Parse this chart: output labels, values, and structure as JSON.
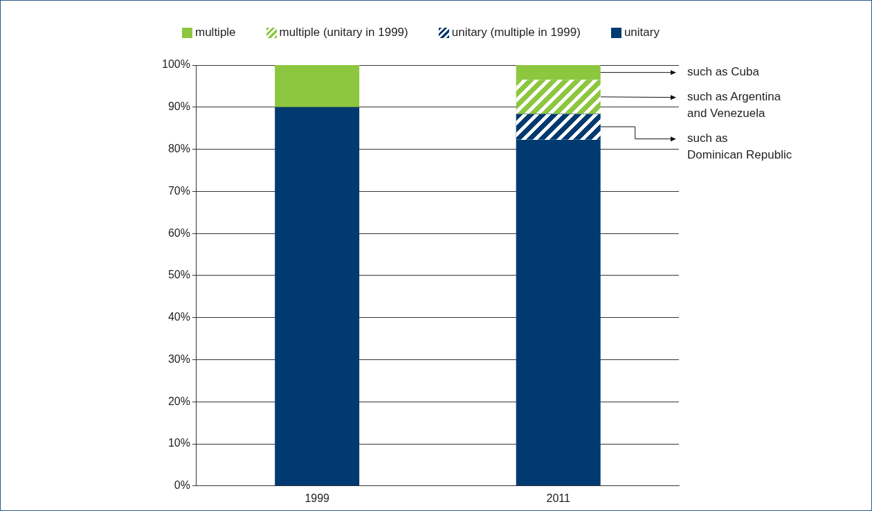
{
  "chart_data": {
    "type": "bar",
    "stacked": true,
    "categories": [
      "1999",
      "2011"
    ],
    "series": [
      {
        "name": "unitary",
        "color": "#003a70",
        "values": [
          90,
          82.3
        ]
      },
      {
        "name": "unitary (multiple in 1999)",
        "color": "#003a70",
        "values": [
          0,
          6.1
        ]
      },
      {
        "name": "multiple (unitary in 1999)",
        "color": "#8dc63f",
        "values": [
          0,
          8.1
        ]
      },
      {
        "name": "multiple",
        "color": "#8dc63f",
        "values": [
          10,
          3.5
        ]
      }
    ],
    "ylim": [
      0,
      100
    ],
    "yticks": [
      {
        "value": 0,
        "label": "0%"
      },
      {
        "value": 10,
        "label": "10%"
      },
      {
        "value": 20,
        "label": "20%"
      },
      {
        "value": 30,
        "label": "30%"
      },
      {
        "value": 40,
        "label": "40%"
      },
      {
        "value": 50,
        "label": "50%"
      },
      {
        "value": 60,
        "label": "60%"
      },
      {
        "value": 70,
        "label": "70%"
      },
      {
        "value": 80,
        "label": "80%"
      },
      {
        "value": 90,
        "label": "90%"
      },
      {
        "value": 100,
        "label": "100%"
      }
    ],
    "grid": "y",
    "legend": "top",
    "annotations": [
      "such as Cuba",
      "such as Argentina\nand Venezuela",
      "such as\nDominican Republic"
    ]
  }
}
